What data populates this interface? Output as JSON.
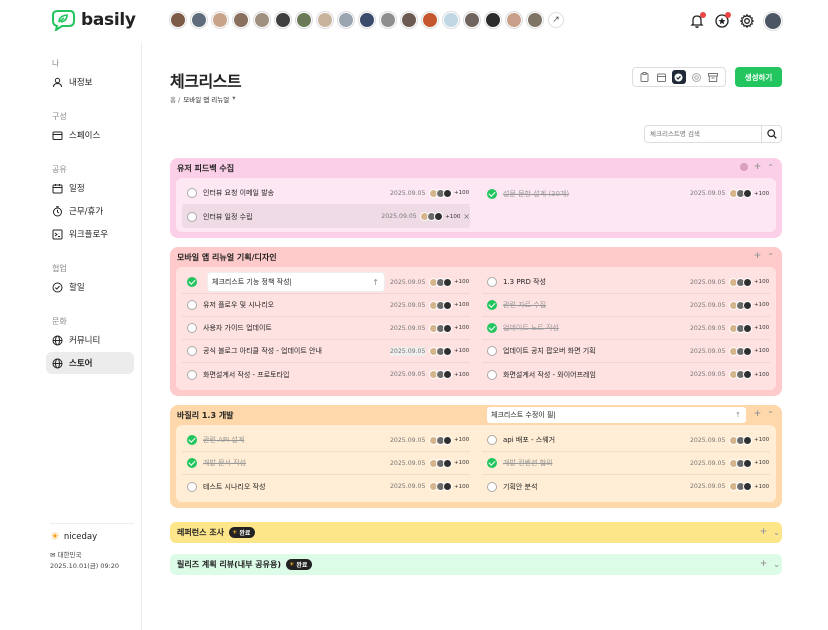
{
  "brand": {
    "name": "basily",
    "color": "#22c55e"
  },
  "top_avatars": [
    "#7b5a46",
    "#5d6b7a",
    "#c9a28a",
    "#8a6e5e",
    "#a09080",
    "#3f3f3f",
    "#6a7a58",
    "#c8b49c",
    "#9aa5b0",
    "#3b4b6b",
    "#8e8e8e",
    "#6b5a52",
    "#c4552d",
    "#c0d8e4",
    "#6f655e",
    "#2b2b2b",
    "#c8a08a",
    "#7e7466"
  ],
  "top_icons": [
    "bell-icon",
    "star-icon",
    "gear-icon"
  ],
  "sidebar": {
    "sections": [
      {
        "label": "나",
        "items": [
          {
            "label": "내정보",
            "icon": "user-icon"
          }
        ]
      },
      {
        "label": "구성",
        "items": [
          {
            "label": "스페이스",
            "icon": "space-icon"
          }
        ]
      },
      {
        "label": "공유",
        "items": [
          {
            "label": "일정",
            "icon": "calendar-icon"
          },
          {
            "label": "근무/휴가",
            "icon": "clock-icon"
          },
          {
            "label": "워크플로우",
            "icon": "flow-icon"
          }
        ]
      },
      {
        "label": "협업",
        "items": [
          {
            "label": "할일",
            "icon": "check-circle-icon"
          }
        ]
      },
      {
        "label": "문화",
        "items": [
          {
            "label": "커뮤니티",
            "icon": "globe-icon"
          },
          {
            "label": "스토어",
            "icon": "globe-icon",
            "active": true
          }
        ]
      }
    ],
    "user": {
      "name": "niceday",
      "country": "✉ 대한민국",
      "datetime": "2025.10.01(금) 09:20"
    }
  },
  "page": {
    "title": "체크리스트",
    "crumb_home": "홈 /",
    "crumb_current": "모바일 앱 리뉴얼",
    "create_label": "생성하기",
    "search_placeholder": "체크리스트명 검색"
  },
  "groups": [
    {
      "title": "유저 피드백 수집",
      "bg": "#fbcfe8",
      "body": "#fce7f3",
      "left": [
        {
          "text": "인터뷰 요청 이메일 발송",
          "date": "2025.09.05",
          "more": "+100",
          "done": false
        },
        {
          "text": "인터뷰 일정 수립",
          "date": "2025.09.05",
          "more": "+100",
          "done": false,
          "hover": true,
          "close": "×"
        }
      ],
      "right": [
        {
          "text": "설문 문항 설계 (30개)",
          "date": "2025.09.05",
          "more": "+100",
          "done": true
        }
      ]
    },
    {
      "title": "모바일 앱 리뉴얼 기획/디자인",
      "bg": "#fecaca",
      "body": "#fee2e2",
      "left": [
        {
          "text": "체크리스트 기능 정책 작성",
          "date": "2025.09.05",
          "more": "+100",
          "done": true,
          "editing": true
        },
        {
          "text": "유저 플로우 및 시나리오",
          "date": "2025.09.05",
          "more": "+100",
          "done": false
        },
        {
          "text": "사용자 가이드 업데이트",
          "date": "2025.09.05",
          "more": "+100",
          "done": false
        },
        {
          "text": "공식 블로그 아티클 작성 - 업데이트 안내",
          "date": "2025.09.05",
          "more": "+100",
          "done": false,
          "highlight": true
        },
        {
          "text": "화면설계서 작성 - 프로토타입",
          "date": "2025.09.05",
          "more": "+100",
          "done": false
        }
      ],
      "right": [
        {
          "text": "1.3 PRD 작성",
          "date": "2025.09.05",
          "more": "+100",
          "done": false
        },
        {
          "text": "관련 자료 수집",
          "date": "2025.09.05",
          "more": "+100",
          "done": true
        },
        {
          "text": "업데이트 노트 작성",
          "date": "2025.09.05",
          "more": "+100",
          "done": true
        },
        {
          "text": "업데이트 공지 팝오버 화면 기획",
          "date": "2025.09.05",
          "more": "+100",
          "done": false
        },
        {
          "text": "화면설계서 작성 - 와이어프레임",
          "date": "2025.09.05",
          "more": "+100",
          "done": false
        }
      ]
    },
    {
      "title": "바질리 1.3 개발",
      "bg": "#fed7aa",
      "body": "#ffedd5",
      "header_input": "체크리스트 수정이 필",
      "left": [
        {
          "text": "관련 API 설계",
          "date": "2025.09.05",
          "more": "+100",
          "done": true
        },
        {
          "text": "개발 문서 작성",
          "date": "2025.09.05",
          "more": "+100",
          "done": true
        },
        {
          "text": "테스트 시나리오 작성",
          "date": "2025.09.05",
          "more": "+100",
          "done": false
        }
      ],
      "right": [
        {
          "text": "api 배포 - 스웨거",
          "date": "2025.09.05",
          "more": "+100",
          "done": false
        },
        {
          "text": "개발 컨벤션 협의",
          "date": "2025.09.05",
          "more": "+100",
          "done": true
        },
        {
          "text": "기획안 분석",
          "date": "2025.09.05",
          "more": "+100",
          "done": false
        }
      ]
    }
  ],
  "collapsed": [
    {
      "title": "레퍼런스 조사",
      "badge": "완료",
      "bg": "#fde68a"
    },
    {
      "title": "릴리즈 계획 리뷰(내부 공유용)",
      "badge": "완료",
      "bg": "#dcfce7"
    }
  ],
  "row_avatar_colors": [
    "#d6b48c",
    "#6a6a6a",
    "#2f2f2f"
  ]
}
